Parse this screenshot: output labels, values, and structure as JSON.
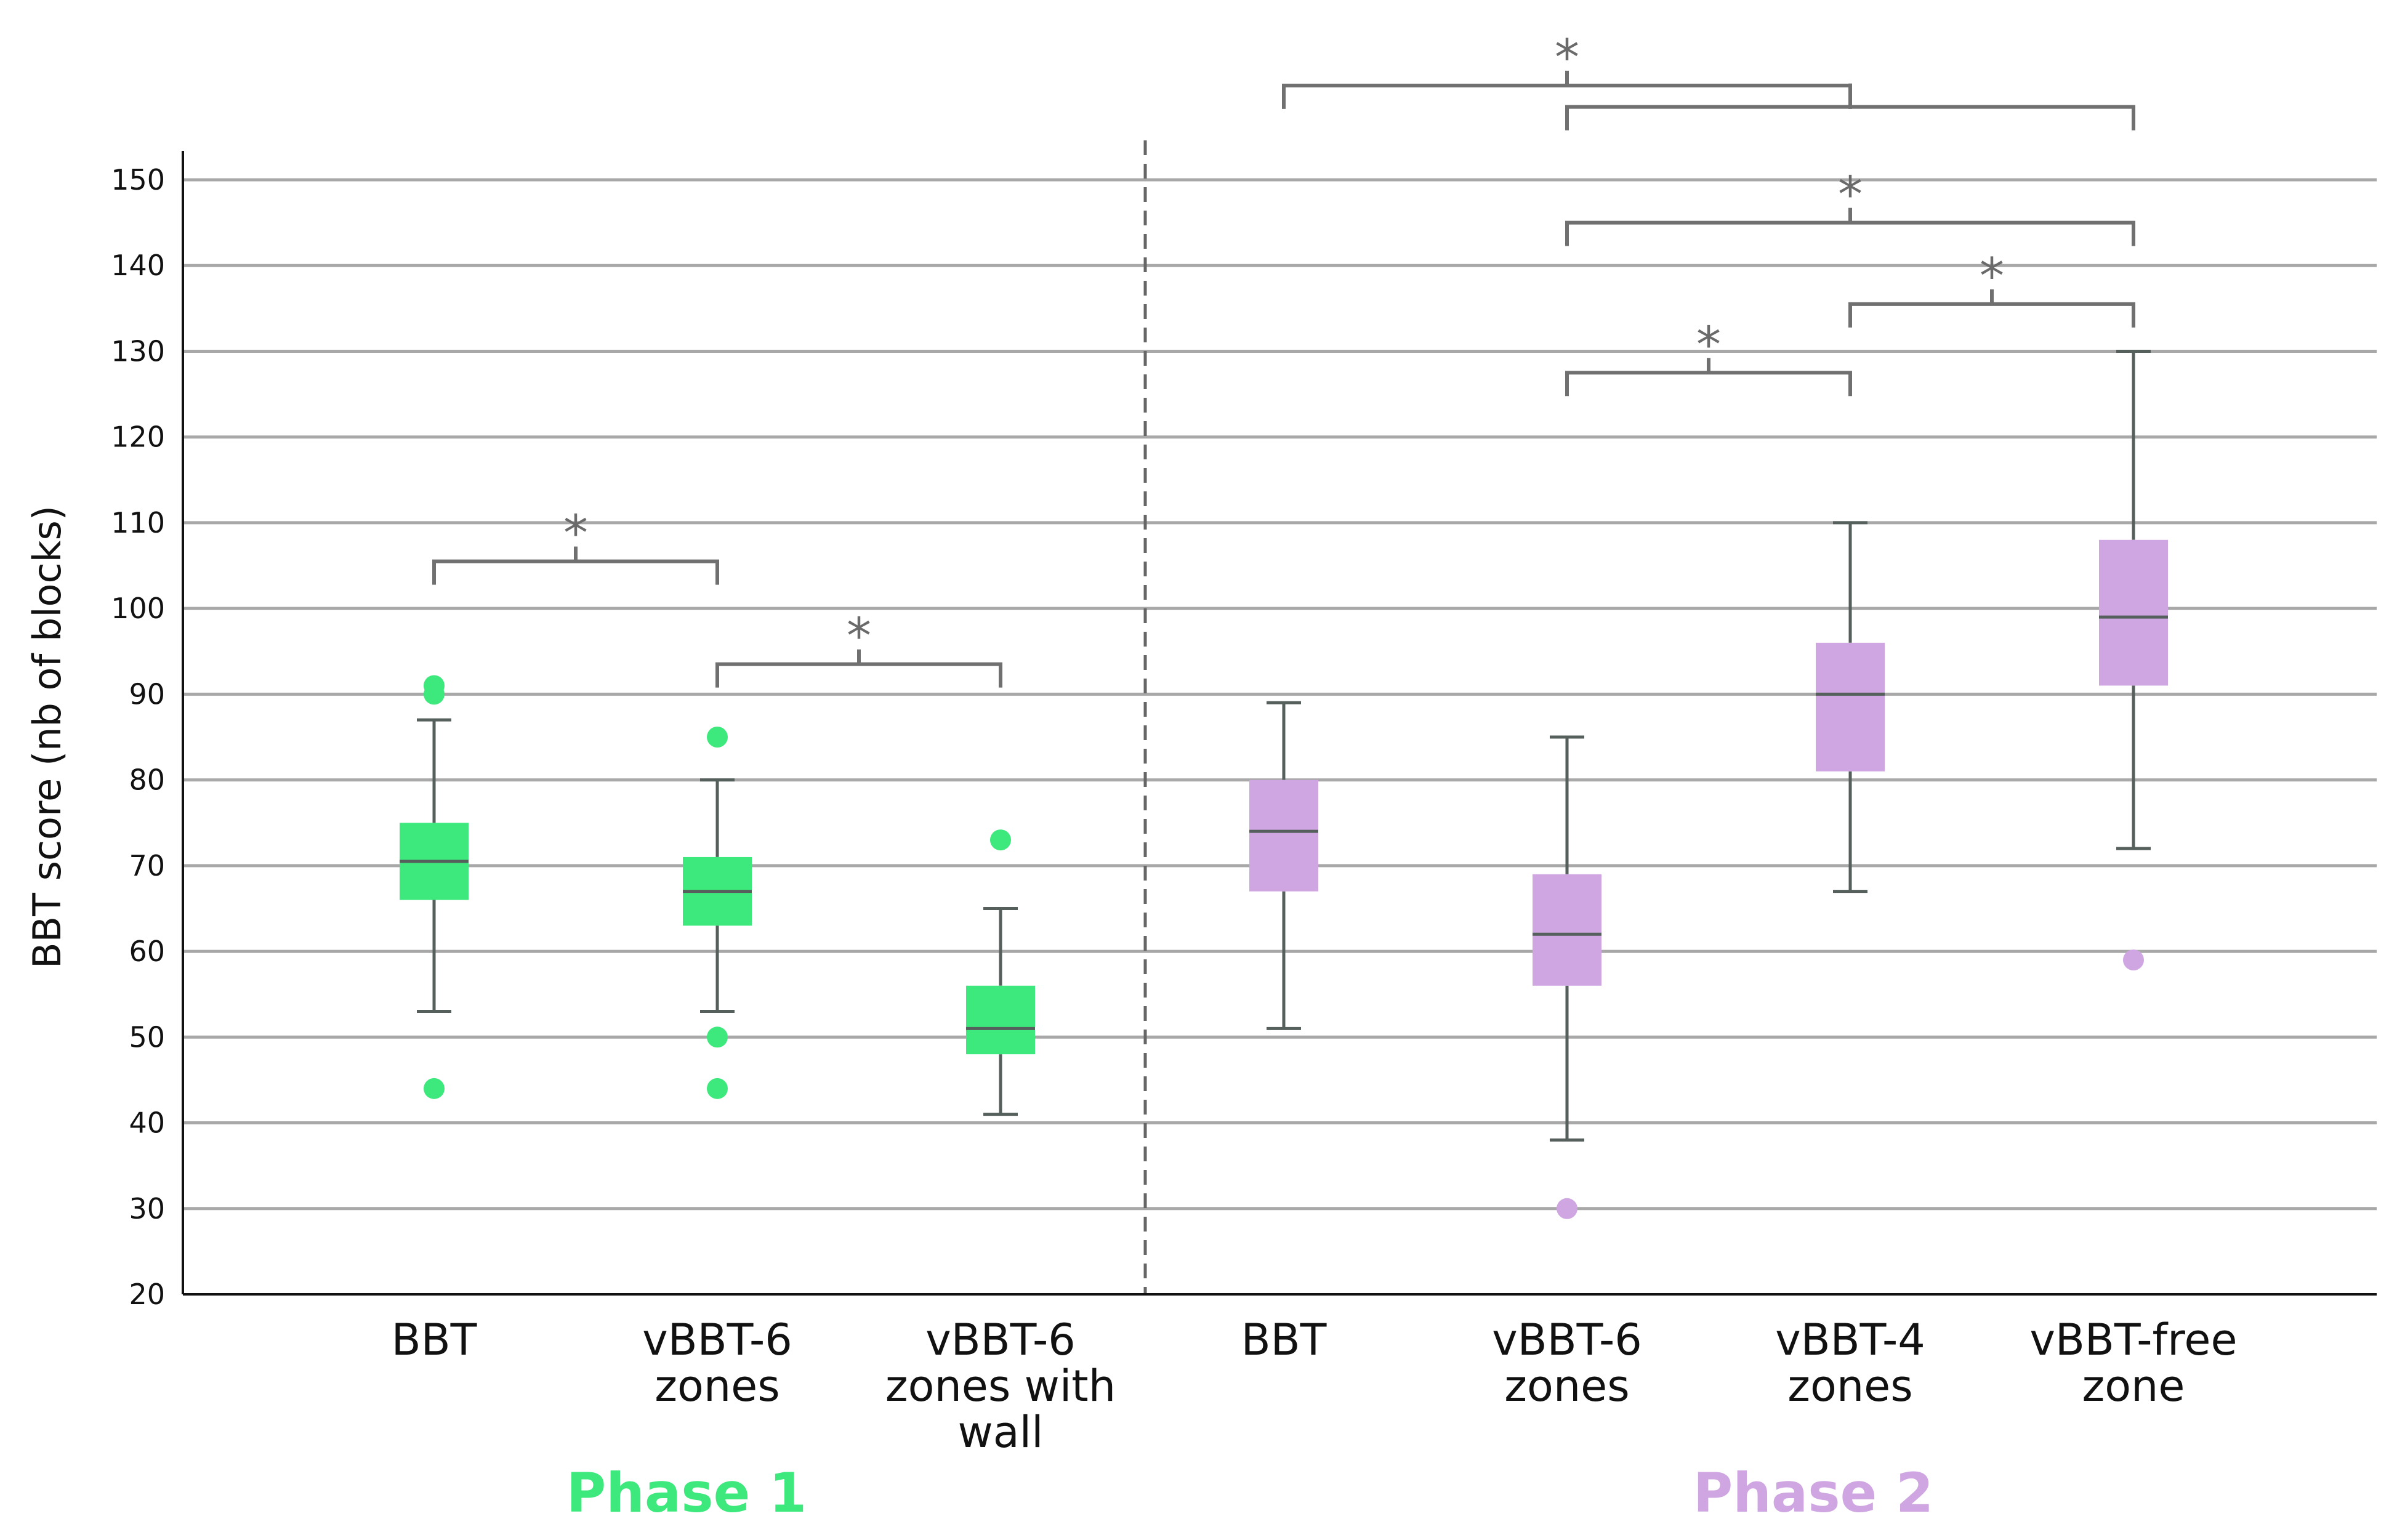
{
  "chart_data": {
    "type": "box",
    "ylabel": "BBT score (nb of blocks)",
    "ylim": [
      20,
      150
    ],
    "yticks": [
      20,
      30,
      40,
      50,
      60,
      70,
      80,
      90,
      100,
      110,
      120,
      130,
      140,
      150
    ],
    "grid": true,
    "colors": {
      "phase1": "#3de87c",
      "phase2": "#cfa6e2",
      "line": "#555f5c",
      "grid": "#a8a8a8",
      "bracket": "#707070"
    },
    "groups": [
      {
        "label": "Phase 1",
        "color": "#3de87c",
        "categories": [
          0,
          1,
          2
        ]
      },
      {
        "label": "Phase 2",
        "color": "#cfa6e2",
        "categories": [
          3,
          4,
          5,
          6
        ]
      }
    ],
    "boxes": [
      {
        "label_lines": [
          "BBT"
        ],
        "phase": 1,
        "whisker_low": 53,
        "q1": 66,
        "median": 70.5,
        "q3": 75,
        "whisker_high": 87,
        "outliers": [
          44,
          90,
          91
        ]
      },
      {
        "label_lines": [
          "vBBT-6",
          "zones"
        ],
        "phase": 1,
        "whisker_low": 53,
        "q1": 63,
        "median": 67,
        "q3": 71,
        "whisker_high": 80,
        "outliers": [
          44,
          50,
          85
        ]
      },
      {
        "label_lines": [
          "vBBT-6",
          "zones with",
          "wall"
        ],
        "phase": 1,
        "whisker_low": 41,
        "q1": 48,
        "median": 51,
        "q3": 56,
        "whisker_high": 65,
        "outliers": [
          73
        ]
      },
      {
        "label_lines": [
          "BBT"
        ],
        "phase": 2,
        "whisker_low": 51,
        "q1": 67,
        "median": 74,
        "q3": 80,
        "whisker_high": 89,
        "outliers": []
      },
      {
        "label_lines": [
          "vBBT-6",
          "zones"
        ],
        "phase": 2,
        "whisker_low": 38,
        "q1": 56,
        "median": 62,
        "q3": 69,
        "whisker_high": 85,
        "outliers": [
          30
        ]
      },
      {
        "label_lines": [
          "vBBT-4",
          "zones"
        ],
        "phase": 2,
        "whisker_low": 67,
        "q1": 81,
        "median": 90,
        "q3": 96,
        "whisker_high": 110,
        "outliers": []
      },
      {
        "label_lines": [
          "vBBT-free",
          "zone"
        ],
        "phase": 2,
        "whisker_low": 72,
        "q1": 91,
        "median": 99,
        "q3": 108,
        "whisker_high": 130,
        "outliers": [
          59
        ]
      }
    ],
    "significance": [
      {
        "from": 0,
        "to": 1,
        "y": 105.5,
        "label": "*"
      },
      {
        "from": 1,
        "to": 2,
        "y": 93.5,
        "label": "*"
      },
      {
        "from": 4,
        "to": 5,
        "y": 127.5,
        "label": "*"
      },
      {
        "from": 5,
        "to": 6,
        "y": 135.5,
        "label": "*"
      },
      {
        "from": 4,
        "to": 6,
        "y": 145,
        "label": "*"
      },
      {
        "from": 4,
        "to": 6,
        "y": 158.5,
        "label": "",
        "stem_to": 5
      },
      {
        "from": 3,
        "to": 5,
        "y": 161,
        "label": "*"
      }
    ]
  }
}
